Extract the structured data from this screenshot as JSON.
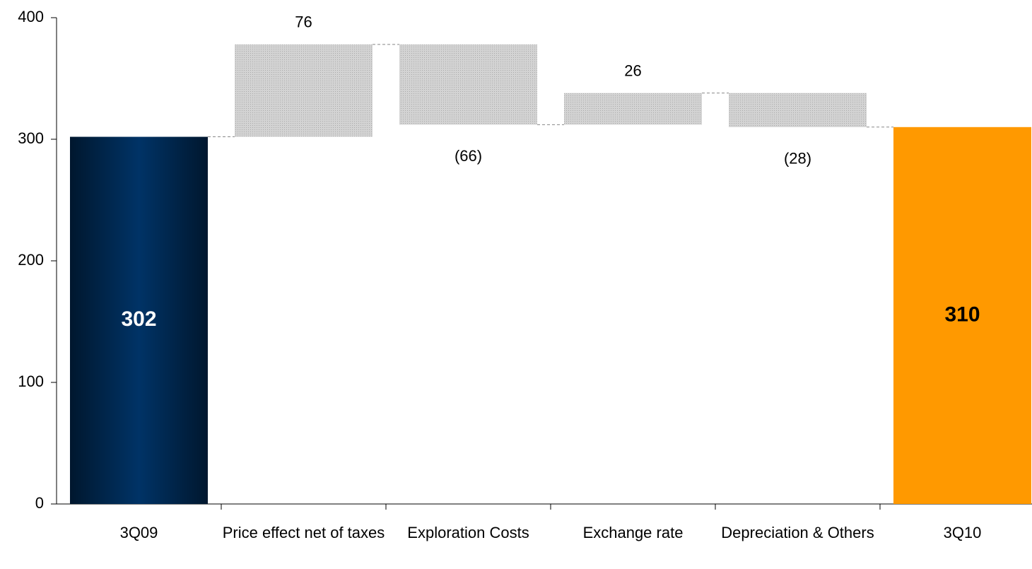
{
  "chart_data": {
    "type": "waterfall",
    "categories": [
      "3Q09",
      "Price effect net of taxes",
      "Exploration Costs",
      "Exchange rate",
      "Depreciation & Others",
      "3Q10"
    ],
    "values": [
      302,
      76,
      -66,
      26,
      -28,
      310
    ],
    "value_labels": [
      "302",
      "76",
      "(66)",
      "26",
      "(28)",
      "310"
    ],
    "colors": {
      "start": "#003366",
      "change": "#d3d3d3",
      "end": "#ff9900"
    },
    "ylim": [
      0,
      400
    ],
    "yticks": [
      0,
      100,
      200,
      300,
      400
    ],
    "grid": false
  }
}
